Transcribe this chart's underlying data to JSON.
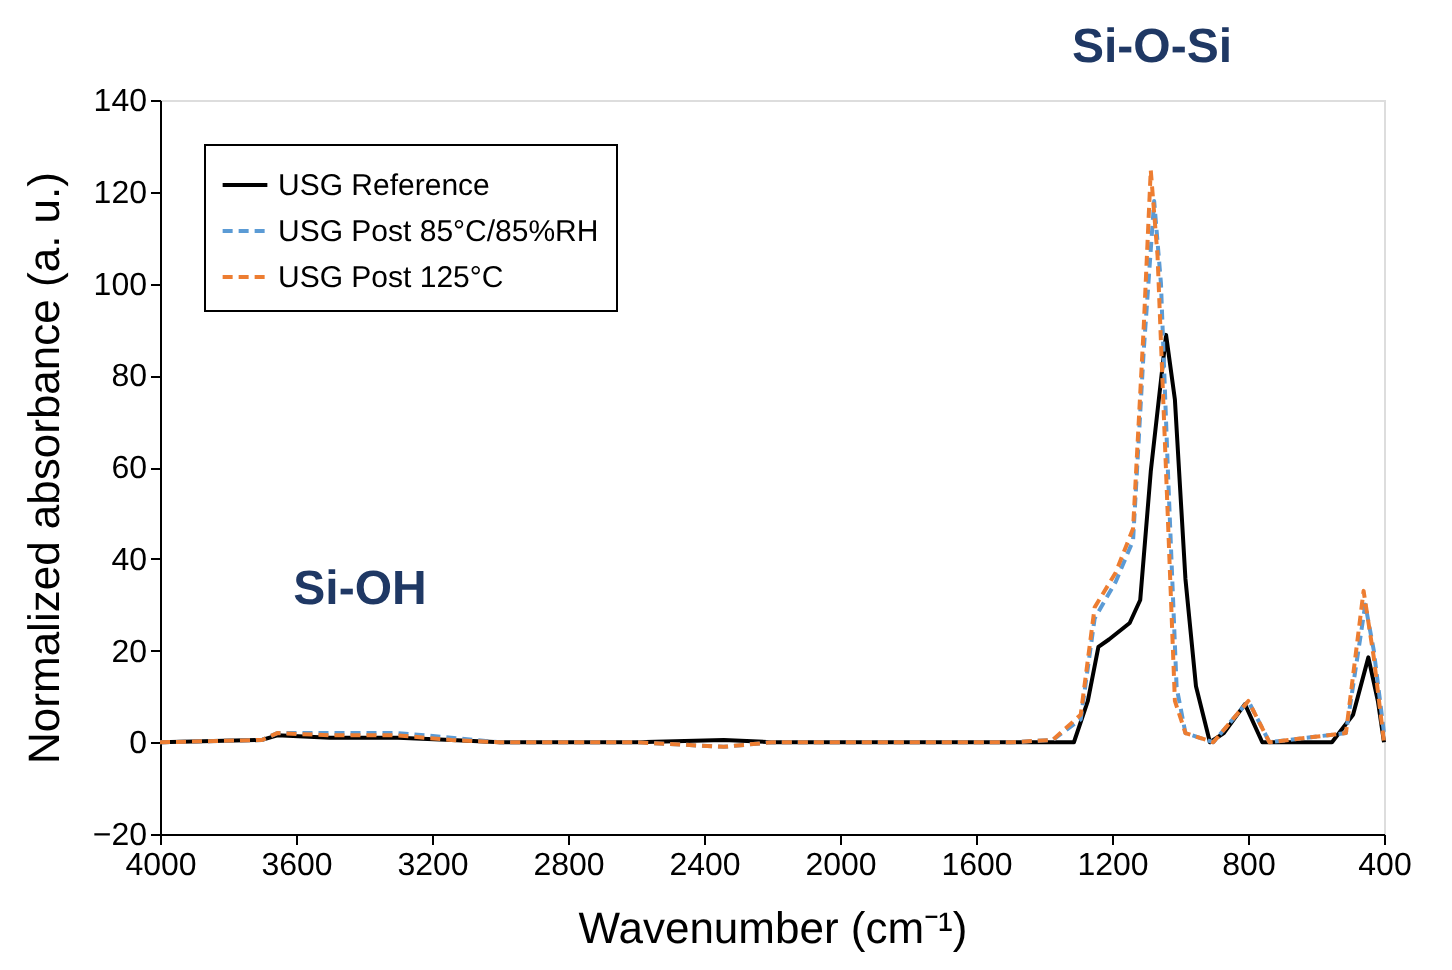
{
  "chart_data": {
    "type": "line",
    "xlabel": "Wavenumber (cm⁻¹)",
    "ylabel": "Normalized absorbance (a. u.)",
    "xlim": [
      4000,
      400
    ],
    "xticks": [
      4000,
      3600,
      3200,
      2800,
      2400,
      2000,
      1600,
      1200,
      800,
      400
    ],
    "ylim": [
      -20,
      140
    ],
    "yticks": [
      -20,
      0,
      20,
      40,
      60,
      80,
      100,
      120,
      140
    ],
    "grid": false,
    "legend": "top left",
    "marker": "none",
    "annotations": [
      "Si-O-Si",
      "Si-OH"
    ],
    "series": [
      {
        "name": "USG Reference",
        "color": "#000000",
        "line_style": "solid",
        "x": [
          4000,
          3700,
          3655,
          3500,
          3300,
          3143,
          3000,
          2600,
          2342,
          2200,
          1800,
          1497,
          1312,
          1271,
          1240,
          1209,
          1148,
          1117,
          1086,
          1041,
          1015,
          984,
          953,
          912,
          871,
          809,
          758,
          717,
          553,
          491,
          446,
          418,
          400
        ],
        "values": [
          0,
          0.5,
          1.5,
          1,
          1,
          0.5,
          0,
          0,
          0.5,
          0,
          0,
          0,
          0,
          9,
          20.8,
          22.4,
          26,
          31,
          59,
          88.8,
          74.7,
          35.6,
          12.2,
          0,
          2,
          8.3,
          0,
          0,
          0,
          6,
          18.5,
          9,
          0
        ]
      },
      {
        "name": "USG Post 85°C/85%RH",
        "color": "#5b9bd5",
        "line_style": "dashed",
        "x": [
          4000,
          3700,
          3655,
          3500,
          3300,
          3143,
          3000,
          2600,
          2342,
          2200,
          1800,
          1497,
          1374,
          1292,
          1251,
          1189,
          1138,
          1107,
          1076,
          1056,
          1036,
          1010,
          984,
          902,
          799,
          737,
          512,
          455,
          430,
          400
        ],
        "values": [
          0,
          0.5,
          2,
          2,
          2,
          1,
          0,
          0,
          -1,
          0,
          0,
          0,
          0.5,
          5,
          27,
          35,
          44,
          85,
          118,
          100,
          60,
          12,
          2,
          0,
          9,
          0,
          2,
          30,
          20,
          2
        ]
      },
      {
        "name": "USG Post 125°C",
        "color": "#ed7d31",
        "line_style": "dashed",
        "x": [
          4000,
          3700,
          3655,
          3500,
          3300,
          3143,
          3000,
          2600,
          2342,
          2200,
          1800,
          1497,
          1374,
          1292,
          1251,
          1189,
          1138,
          1107,
          1086,
          1066,
          1041,
          1015,
          984,
          902,
          799,
          737,
          512,
          460,
          430,
          400
        ],
        "values": [
          0,
          0.5,
          2,
          1.5,
          1.5,
          0.5,
          0,
          0,
          -1,
          0,
          0,
          0,
          0.5,
          6,
          29.4,
          37,
          46.6,
          90,
          124.7,
          106,
          59,
          9,
          2,
          0,
          9,
          0,
          2,
          33,
          18.5,
          0
        ]
      }
    ]
  }
}
